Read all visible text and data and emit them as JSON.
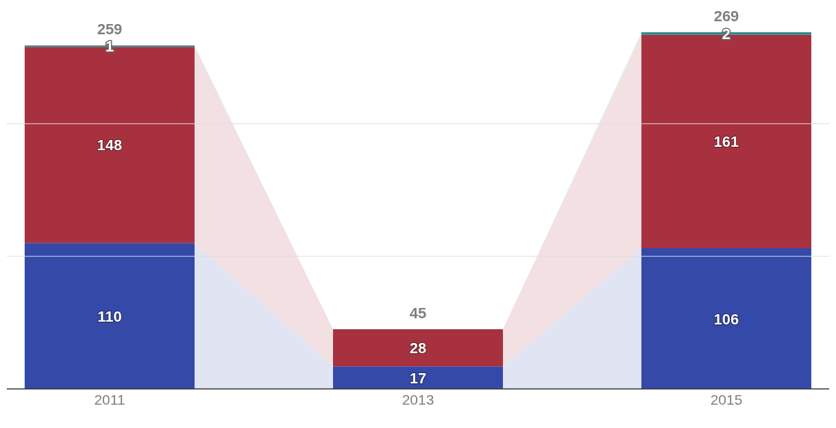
{
  "chart_data": {
    "type": "bar",
    "stacked": true,
    "categories": [
      "2011",
      "2013",
      "2015"
    ],
    "series": [
      {
        "color": "#3449a8",
        "values": [
          110,
          17,
          106
        ]
      },
      {
        "color": "#a8313f",
        "values": [
          148,
          28,
          161
        ]
      },
      {
        "color": "#2a8c8f",
        "values": [
          1,
          null,
          2
        ]
      }
    ],
    "ref_lines": [
      {
        "axis": "y",
        "value": 100,
        "color": "#dddddd"
      },
      {
        "axis": "y",
        "value": 200,
        "color": "#dddddd"
      }
    ],
    "data_labels": true,
    "totals": [
      "259",
      "45",
      "269"
    ],
    "legend": false
  }
}
